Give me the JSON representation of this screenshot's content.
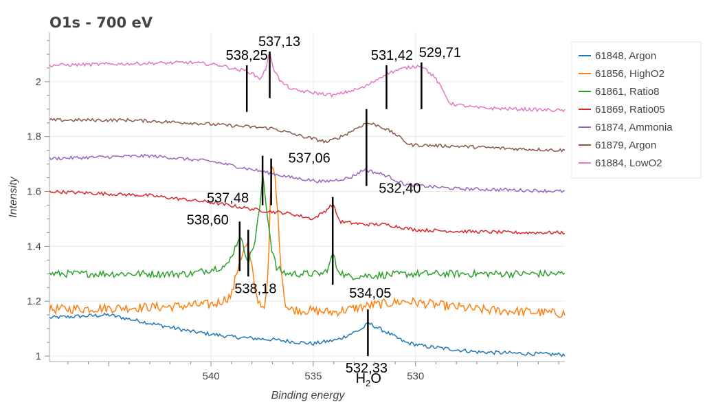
{
  "chart_data": {
    "type": "line",
    "title": "O1s - 700 eV",
    "xlabel": "Binding energy",
    "ylabel": "Intensity",
    "xlim": [
      547.9,
      522.7
    ],
    "ylim": [
      0.98,
      2.18
    ],
    "x_reversed": true,
    "grid": true,
    "legend_position": "right",
    "xticks": [
      540,
      535,
      530
    ],
    "yticks": [
      1,
      1.2,
      1.4,
      1.6,
      1.8,
      2
    ],
    "ytick_labels": [
      "1",
      "1.2",
      "1.4",
      "1.6",
      "1.8",
      "2"
    ],
    "series": [
      {
        "name": "61848, Argon",
        "color": "#1f77b4",
        "keypoints": [
          [
            547.9,
            1.14
          ],
          [
            545,
            1.15
          ],
          [
            543,
            1.12
          ],
          [
            541,
            1.09
          ],
          [
            539,
            1.07
          ],
          [
            537,
            1.06
          ],
          [
            535,
            1.045
          ],
          [
            533.8,
            1.06
          ],
          [
            532.6,
            1.1
          ],
          [
            532.3,
            1.12
          ],
          [
            531.5,
            1.09
          ],
          [
            530.5,
            1.05
          ],
          [
            529.5,
            1.035
          ],
          [
            527,
            1.015
          ],
          [
            525,
            1.01
          ],
          [
            522.7,
            1.005
          ]
        ]
      },
      {
        "name": "61856, HighO2",
        "color": "#ff7f0e",
        "keypoints": [
          [
            547.9,
            1.17
          ],
          [
            542,
            1.18
          ],
          [
            539.8,
            1.19
          ],
          [
            539,
            1.22
          ],
          [
            538.6,
            1.35
          ],
          [
            538.25,
            1.41
          ],
          [
            538,
            1.32
          ],
          [
            537.8,
            1.22
          ],
          [
            537.5,
            1.18
          ],
          [
            537.3,
            1.2
          ],
          [
            537.15,
            1.4
          ],
          [
            537.06,
            1.7
          ],
          [
            536.85,
            1.65
          ],
          [
            536.6,
            1.35
          ],
          [
            536.4,
            1.2
          ],
          [
            536.2,
            1.17
          ],
          [
            534,
            1.16
          ],
          [
            532.2,
            1.185
          ],
          [
            530.5,
            1.2
          ],
          [
            527,
            1.17
          ],
          [
            522.7,
            1.155
          ]
        ]
      },
      {
        "name": "61861, Ratio8",
        "color": "#2ca02c",
        "keypoints": [
          [
            547.9,
            1.3
          ],
          [
            541,
            1.3
          ],
          [
            539.2,
            1.33
          ],
          [
            538.8,
            1.4
          ],
          [
            538.6,
            1.44
          ],
          [
            538.35,
            1.38
          ],
          [
            538.15,
            1.35
          ],
          [
            537.85,
            1.42
          ],
          [
            537.55,
            1.58
          ],
          [
            537.48,
            1.67
          ],
          [
            537.3,
            1.55
          ],
          [
            537.05,
            1.4
          ],
          [
            536.8,
            1.32
          ],
          [
            536.3,
            1.3
          ],
          [
            534.5,
            1.3
          ],
          [
            534.2,
            1.33
          ],
          [
            534.05,
            1.38
          ],
          [
            533.85,
            1.32
          ],
          [
            533.4,
            1.29
          ],
          [
            530,
            1.3
          ],
          [
            522.7,
            1.3
          ]
        ]
      },
      {
        "name": "61869, Ratio05",
        "color": "#d62728",
        "keypoints": [
          [
            547.9,
            1.6
          ],
          [
            543,
            1.585
          ],
          [
            540,
            1.56
          ],
          [
            537.5,
            1.53
          ],
          [
            536.2,
            1.52
          ],
          [
            535,
            1.5
          ],
          [
            534.4,
            1.53
          ],
          [
            534.05,
            1.555
          ],
          [
            533.7,
            1.49
          ],
          [
            532.5,
            1.48
          ],
          [
            531.5,
            1.48
          ],
          [
            530,
            1.46
          ],
          [
            528,
            1.455
          ],
          [
            525,
            1.45
          ],
          [
            522.7,
            1.45
          ]
        ]
      },
      {
        "name": "61874, Ammonia",
        "color": "#9467bd",
        "keypoints": [
          [
            547.9,
            1.72
          ],
          [
            543,
            1.73
          ],
          [
            540,
            1.71
          ],
          [
            538,
            1.68
          ],
          [
            536,
            1.65
          ],
          [
            534.5,
            1.635
          ],
          [
            533.2,
            1.65
          ],
          [
            532.5,
            1.68
          ],
          [
            531.5,
            1.66
          ],
          [
            530.5,
            1.625
          ],
          [
            528,
            1.61
          ],
          [
            525,
            1.605
          ],
          [
            522.7,
            1.6
          ]
        ]
      },
      {
        "name": "61879, Argon",
        "color": "#8c564b",
        "keypoints": [
          [
            547.9,
            1.86
          ],
          [
            544,
            1.86
          ],
          [
            541,
            1.85
          ],
          [
            539,
            1.84
          ],
          [
            537,
            1.83
          ],
          [
            535.5,
            1.8
          ],
          [
            534.3,
            1.78
          ],
          [
            533.5,
            1.805
          ],
          [
            532.4,
            1.85
          ],
          [
            531.8,
            1.84
          ],
          [
            531,
            1.81
          ],
          [
            530.3,
            1.77
          ],
          [
            528,
            1.765
          ],
          [
            525,
            1.755
          ],
          [
            522.7,
            1.75
          ]
        ]
      },
      {
        "name": "61884, LowO2",
        "color": "#e377c2",
        "keypoints": [
          [
            547.9,
            2.06
          ],
          [
            541,
            2.07
          ],
          [
            539.5,
            2.06
          ],
          [
            538.8,
            2.045
          ],
          [
            538.25,
            2.04
          ],
          [
            538,
            2.03
          ],
          [
            537.6,
            2.01
          ],
          [
            537.3,
            2.05
          ],
          [
            537.13,
            2.11
          ],
          [
            536.95,
            2.05
          ],
          [
            536.6,
            2.0
          ],
          [
            536,
            1.97
          ],
          [
            534,
            1.95
          ],
          [
            532.5,
            1.98
          ],
          [
            531.42,
            2.03
          ],
          [
            530.5,
            2.05
          ],
          [
            529.71,
            2.06
          ],
          [
            529,
            2.01
          ],
          [
            528.3,
            1.92
          ],
          [
            527,
            1.905
          ],
          [
            525,
            1.9
          ],
          [
            522.7,
            1.895
          ]
        ]
      }
    ],
    "annotations": [
      {
        "text": "538,25",
        "x": 538.25,
        "line": [
          1.89,
          2.06
        ]
      },
      {
        "text": "537,13",
        "x": 537.13,
        "line": [
          1.94,
          2.11
        ]
      },
      {
        "text": "531,42",
        "x": 531.42,
        "line": [
          1.9,
          2.06
        ]
      },
      {
        "text": "529,71",
        "x": 529.71,
        "line": [
          1.9,
          2.07
        ]
      },
      {
        "text": "532,40",
        "x": 532.4,
        "line": [
          1.62,
          1.9
        ]
      },
      {
        "text": "537,06",
        "x": 537.06,
        "line": [
          1.55,
          1.72
        ]
      },
      {
        "text": "537,48",
        "x": 537.48,
        "line": [
          1.55,
          1.73
        ]
      },
      {
        "text": "538,60",
        "x": 538.6,
        "line": [
          1.31,
          1.49
        ]
      },
      {
        "text": "538,18",
        "x": 538.18,
        "line": [
          1.29,
          1.46
        ]
      },
      {
        "text": "534,05",
        "x": 534.05,
        "line": [
          1.26,
          1.58
        ]
      },
      {
        "text": "532,33",
        "x": 532.33,
        "line": [
          1.0,
          1.17
        ]
      }
    ],
    "h2o_label": {
      "main": "H",
      "sub": "2",
      "rest": "O"
    }
  }
}
